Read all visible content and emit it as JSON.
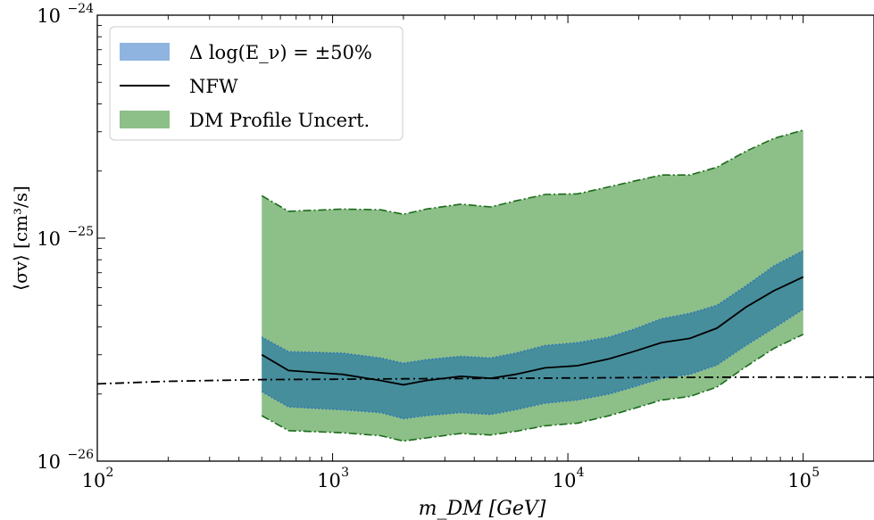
{
  "chart_data": {
    "type": "area",
    "title": "",
    "xlabel": "m_DM [GeV]",
    "ylabel": "⟨σv⟩ [cm³/s]",
    "x_scale": "log",
    "y_scale": "log",
    "xlim": [
      100,
      200000
    ],
    "ylim": [
      1e-26,
      1e-24
    ],
    "x_ticks": [
      {
        "value": 100,
        "label": "10",
        "exp": "2"
      },
      {
        "value": 1000,
        "label": "10",
        "exp": "3"
      },
      {
        "value": 10000,
        "label": "10",
        "exp": "4"
      },
      {
        "value": 100000,
        "label": "10",
        "exp": "5"
      }
    ],
    "y_ticks": [
      {
        "value": 1e-26,
        "label": "10",
        "exp": "−26"
      },
      {
        "value": 1e-25,
        "label": "10",
        "exp": "−25"
      },
      {
        "value": 1e-24,
        "label": "10",
        "exp": "−24"
      }
    ],
    "legend": {
      "position": "top-left",
      "entries": [
        {
          "label": "Δ log(E_ν) = ±50%",
          "kind": "patch",
          "color": "#8fb4df"
        },
        {
          "label": "NFW",
          "kind": "line",
          "color": "#000000"
        },
        {
          "label": "DM Profile Uncert.",
          "kind": "patch",
          "color": "#8dbf88"
        }
      ]
    },
    "series": [
      {
        "name": "DM Profile Uncert.",
        "kind": "band",
        "color": "#8dbf88",
        "edge_color": "#1a6b1a",
        "x": [
          500,
          650,
          1100,
          1600,
          2000,
          2500,
          3500,
          4700,
          6000,
          8000,
          11000,
          15000,
          19000,
          25000,
          33000,
          43000,
          57000,
          75000,
          100000
        ],
        "upper": [
          1.55e-25,
          1.32e-25,
          1.35e-25,
          1.34e-25,
          1.28e-25,
          1.35e-25,
          1.42e-25,
          1.38e-25,
          1.47e-25,
          1.57e-25,
          1.58e-25,
          1.7e-25,
          1.8e-25,
          1.92e-25,
          1.92e-25,
          2.08e-25,
          2.45e-25,
          2.8e-25,
          3.05e-25
        ],
        "lower": [
          1.6e-26,
          1.37e-26,
          1.34e-26,
          1.3e-26,
          1.23e-26,
          1.27e-26,
          1.33e-26,
          1.31e-26,
          1.36e-26,
          1.44e-26,
          1.48e-26,
          1.6e-26,
          1.72e-26,
          1.88e-26,
          1.95e-26,
          2.15e-26,
          2.65e-26,
          3.2e-26,
          3.7e-26
        ]
      },
      {
        "name": "Δ log(E_ν) = ±50%",
        "kind": "band",
        "color": "#2f7ea3",
        "edge_color": "#2a6fbe",
        "x": [
          500,
          650,
          1100,
          1600,
          2000,
          2500,
          3500,
          4700,
          6000,
          8000,
          11000,
          15000,
          19000,
          25000,
          33000,
          43000,
          57000,
          75000,
          100000
        ],
        "upper": [
          3.6e-26,
          3.1e-26,
          3.05e-26,
          2.9e-26,
          2.75e-26,
          2.85e-26,
          2.95e-26,
          2.9e-26,
          3.05e-26,
          3.3e-26,
          3.4e-26,
          3.6e-26,
          3.9e-26,
          4.35e-26,
          4.6e-26,
          5e-26,
          6.1e-26,
          7.5e-26,
          8.8e-26
        ],
        "lower": [
          2.05e-26,
          1.75e-26,
          1.7e-26,
          1.65e-26,
          1.55e-26,
          1.6e-26,
          1.65e-26,
          1.62e-26,
          1.7e-26,
          1.82e-26,
          1.88e-26,
          2e-26,
          2.15e-26,
          2.35e-26,
          2.45e-26,
          2.7e-26,
          3.3e-26,
          3.95e-26,
          4.8e-26
        ]
      },
      {
        "name": "NFW",
        "kind": "line",
        "color": "#000000",
        "x": [
          500,
          650,
          1100,
          1600,
          2000,
          2500,
          3500,
          4700,
          6000,
          8000,
          11000,
          15000,
          19000,
          25000,
          33000,
          43000,
          57000,
          75000,
          100000
        ],
        "y": [
          3e-26,
          2.55e-26,
          2.45e-26,
          2.3e-26,
          2.2e-26,
          2.3e-26,
          2.4e-26,
          2.35e-26,
          2.45e-26,
          2.62e-26,
          2.68e-26,
          2.88e-26,
          3.1e-26,
          3.4e-26,
          3.55e-26,
          3.95e-26,
          4.9e-26,
          5.8e-26,
          6.7e-26
        ]
      },
      {
        "kind": "line",
        "style": "dashdot",
        "color": "#000000",
        "x": [
          100,
          200,
          500,
          1000,
          2000,
          5000,
          10000,
          20000,
          50000,
          100000,
          200000
        ],
        "y": [
          2.22e-26,
          2.28e-26,
          2.32e-26,
          2.33e-26,
          2.34e-26,
          2.35e-26,
          2.36e-26,
          2.37e-26,
          2.38e-26,
          2.38e-26,
          2.38e-26
        ]
      }
    ]
  }
}
